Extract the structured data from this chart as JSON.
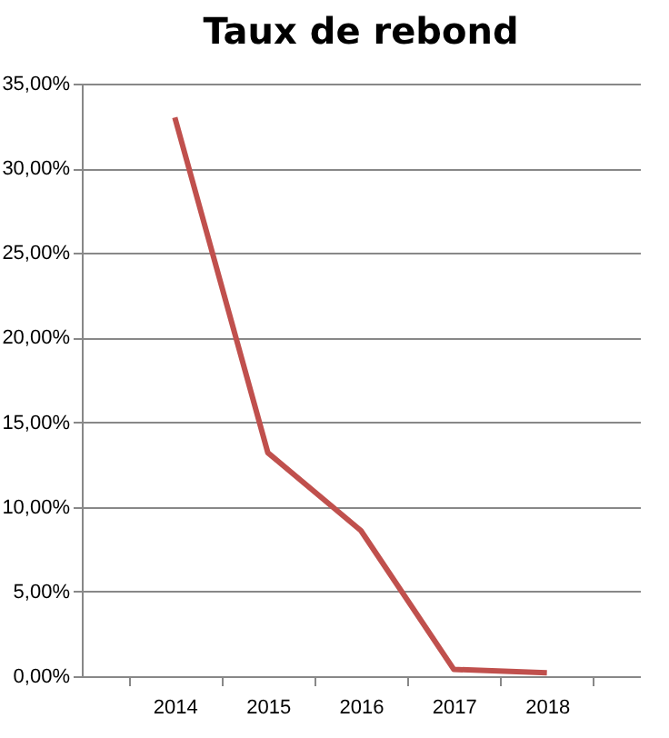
{
  "chart_data": {
    "type": "line",
    "title": "Taux de rebond",
    "categories": [
      "2014",
      "2015",
      "2016",
      "2017",
      "2018"
    ],
    "series": [
      {
        "color": "#c0504d",
        "values": [
          33.0,
          13.2,
          8.6,
          0.4,
          0.2
        ]
      }
    ],
    "ylim": [
      0,
      35
    ],
    "yticks": [
      {
        "value": 0,
        "label": "0,00%"
      },
      {
        "value": 5,
        "label": "5,00%"
      },
      {
        "value": 10,
        "label": "10,00%"
      },
      {
        "value": 15,
        "label": "15,00%"
      },
      {
        "value": 20,
        "label": "20,00%"
      },
      {
        "value": 25,
        "label": "25,00%"
      },
      {
        "value": 30,
        "label": "30,00%"
      },
      {
        "value": 35,
        "label": "35,00%"
      }
    ],
    "grid": "y",
    "legend": false,
    "marker": "none",
    "line_style": "solid"
  }
}
